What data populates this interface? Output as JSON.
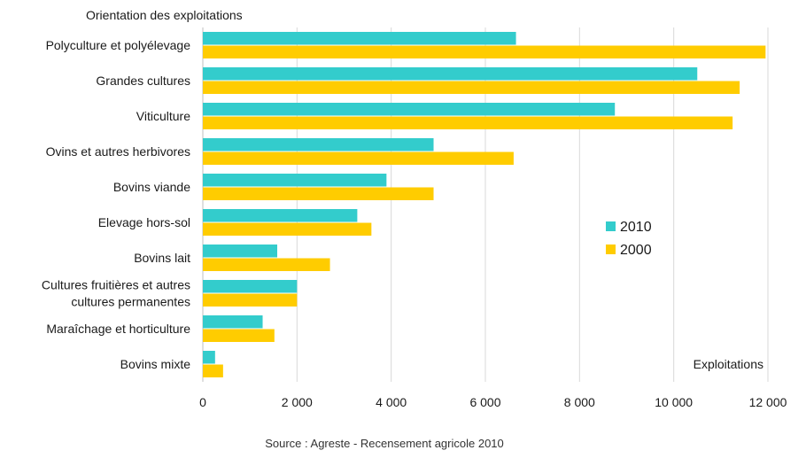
{
  "chart_data": {
    "type": "bar",
    "orientation": "horizontal",
    "y_title": "Orientation des exploitations",
    "x_axis_label": "Exploitations",
    "source": "Source : Agreste - Recensement agricole 2010",
    "categories": [
      [
        "Polyculture et polyélevage"
      ],
      [
        "Grandes cultures"
      ],
      [
        "Viticulture"
      ],
      [
        "Ovins et autres herbivores"
      ],
      [
        "Bovins viande"
      ],
      [
        "Elevage hors-sol"
      ],
      [
        "Bovins lait"
      ],
      [
        "Cultures fruitières et autres",
        "cultures permanentes"
      ],
      [
        "Maraîchage et horticulture"
      ],
      [
        "Bovins mixte"
      ]
    ],
    "series": [
      {
        "name": "2010",
        "color": "#33CCCC",
        "values": [
          6650,
          10500,
          8750,
          4900,
          3900,
          3280,
          1580,
          2000,
          1270,
          260
        ]
      },
      {
        "name": "2000",
        "color": "#FFCC00",
        "values": [
          11950,
          11400,
          11250,
          6600,
          4900,
          3580,
          2700,
          2000,
          1520,
          430
        ]
      }
    ],
    "xlim": [
      0,
      12000
    ],
    "ticks": [
      0,
      2000,
      4000,
      6000,
      8000,
      10000,
      12000
    ],
    "tick_labels": [
      "0",
      "2 000",
      "4 000",
      "6 000",
      "8 000",
      "10 000",
      "12 000"
    ],
    "gridlines": true,
    "legend": "right"
  }
}
